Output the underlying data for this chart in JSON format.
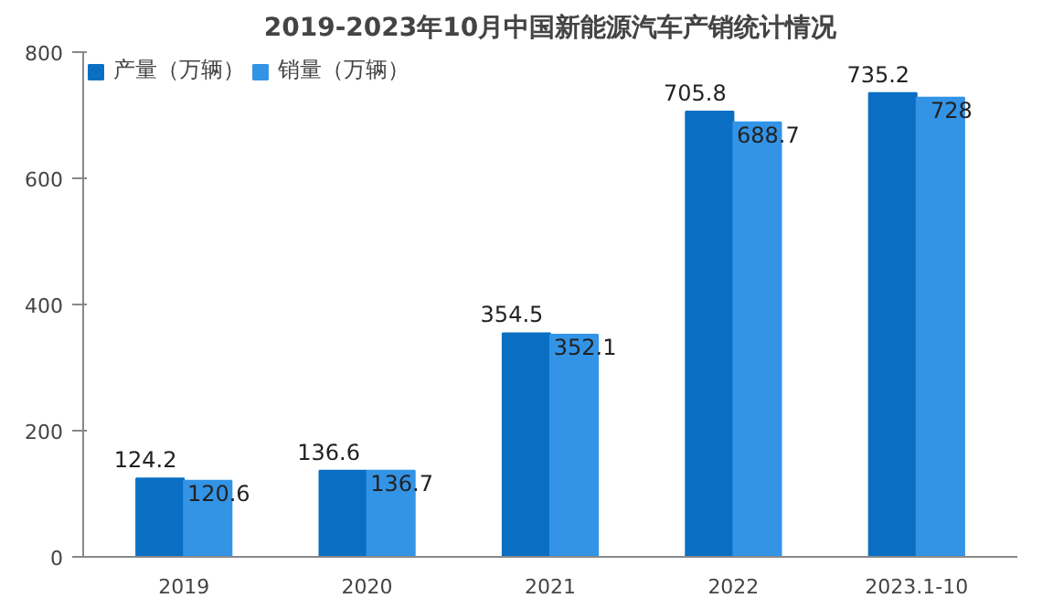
{
  "chart_data": {
    "type": "bar",
    "title": "2019-2023年10月中国新能源汽车产销统计情况",
    "categories": [
      "2019",
      "2020",
      "2021",
      "2022",
      "2023.1-10"
    ],
    "series": [
      {
        "name": "产量（万辆）",
        "color": "#0a6fc2",
        "values": [
          124.2,
          136.6,
          354.5,
          705.8,
          735.2
        ]
      },
      {
        "name": "销量（万辆）",
        "color": "#3394e6",
        "values": [
          120.6,
          136.7,
          352.1,
          688.7,
          728
        ]
      }
    ],
    "ylim": [
      0,
      800
    ],
    "yticks": [
      0,
      200,
      400,
      600,
      800
    ],
    "grid": false,
    "legend": "top",
    "data_labels": true
  }
}
